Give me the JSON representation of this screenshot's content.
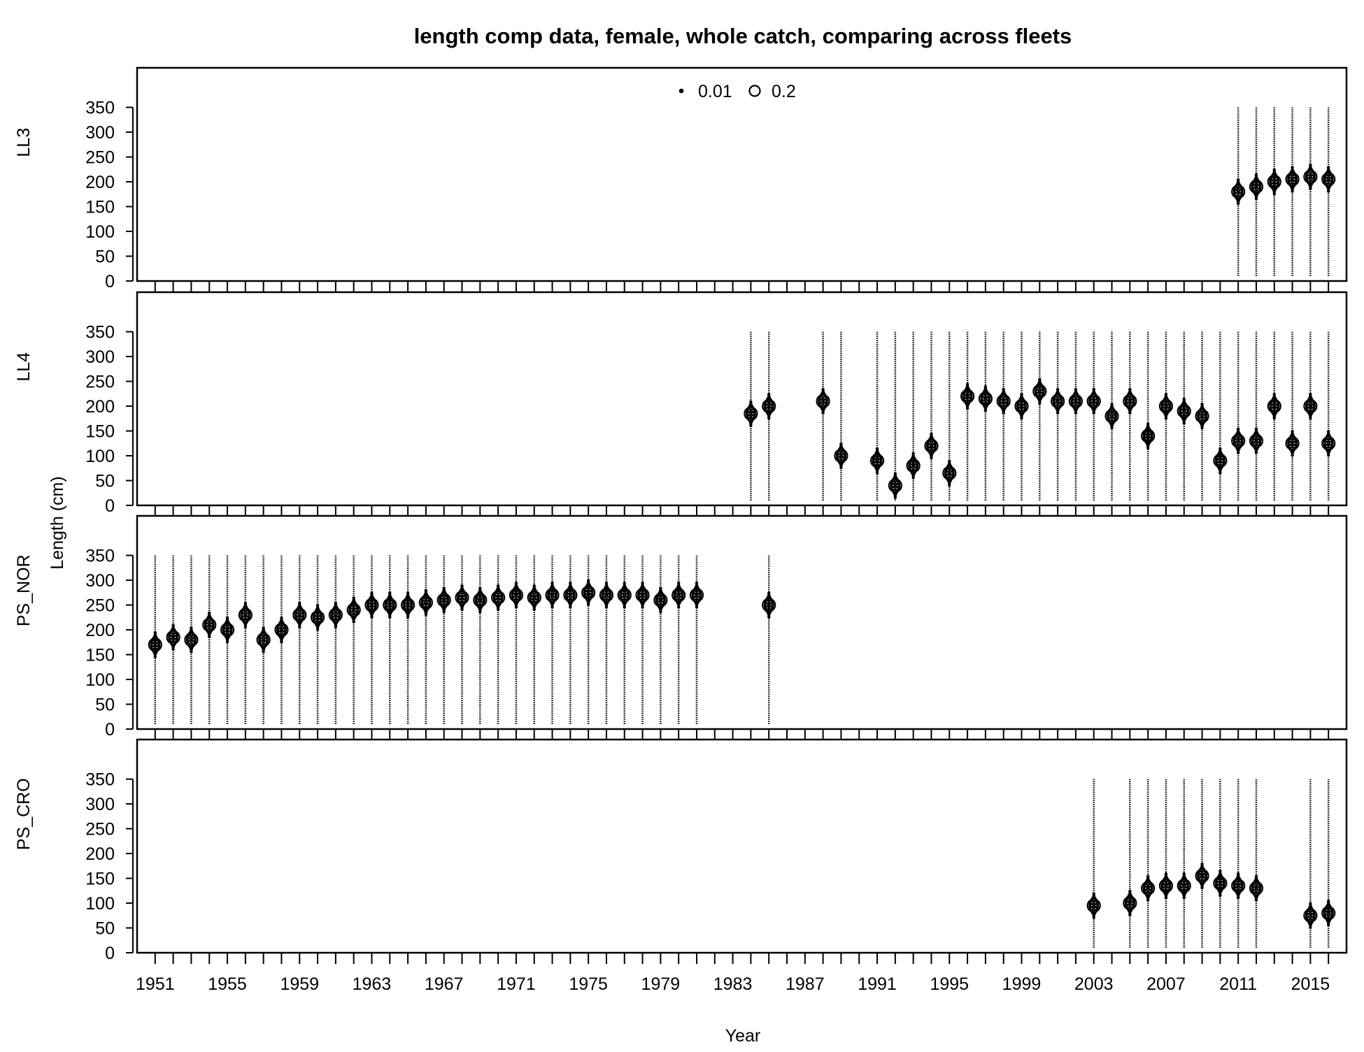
{
  "chart_data": {
    "type": "scatter",
    "title": "length comp data, female, whole catch, comparing across fleets",
    "xlabel": "Year",
    "ylabel": "Length (cm)",
    "xlim": [
      1950,
      2017
    ],
    "x_ticks": [
      1951,
      1955,
      1959,
      1963,
      1967,
      1971,
      1975,
      1979,
      1983,
      1987,
      1991,
      1995,
      1999,
      2003,
      2007,
      2011,
      2015
    ],
    "y_ticks": [
      0,
      50,
      100,
      150,
      200,
      250,
      300,
      350
    ],
    "ylim": [
      0,
      410
    ],
    "length_bin_range": [
      10,
      350
    ],
    "legend": {
      "placement": "top-center",
      "entries": [
        {
          "label": "0.01",
          "value": 0.01
        },
        {
          "label": "0.2",
          "value": 0.2
        }
      ]
    },
    "panels": [
      {
        "name": "LL3",
        "years": [
          2011,
          2012,
          2013,
          2014,
          2015,
          2016
        ],
        "modes": [
          [
            180
          ],
          [
            190
          ],
          [
            200
          ],
          [
            205
          ],
          [
            210
          ],
          [
            205
          ]
        ]
      },
      {
        "name": "LL4",
        "years": [
          1984,
          1985,
          1988,
          1989,
          1991,
          1992,
          1993,
          1994,
          1995,
          1996,
          1997,
          1998,
          1999,
          2000,
          2001,
          2002,
          2003,
          2004,
          2005,
          2006,
          2007,
          2008,
          2009,
          2010,
          2011,
          2012,
          2013,
          2014,
          2015,
          2016
        ],
        "modes": [
          [
            185
          ],
          [
            200
          ],
          [
            210
          ],
          [
            100
          ],
          [
            90
          ],
          [
            40
          ],
          [
            80
          ],
          [
            120
          ],
          [
            65
          ],
          [
            220
          ],
          [
            215
          ],
          [
            210
          ],
          [
            200
          ],
          [
            230
          ],
          [
            210
          ],
          [
            210
          ],
          [
            210
          ],
          [
            180
          ],
          [
            210
          ],
          [
            140
          ],
          [
            200
          ],
          [
            190
          ],
          [
            180
          ],
          [
            90
          ],
          [
            130
          ],
          [
            130
          ],
          [
            200
          ],
          [
            125
          ],
          [
            200
          ],
          [
            125
          ]
        ]
      },
      {
        "name": "PS_NOR",
        "years": [
          1951,
          1952,
          1953,
          1954,
          1955,
          1956,
          1957,
          1958,
          1959,
          1960,
          1961,
          1962,
          1963,
          1964,
          1965,
          1966,
          1967,
          1968,
          1969,
          1970,
          1971,
          1972,
          1973,
          1974,
          1975,
          1976,
          1977,
          1978,
          1979,
          1980,
          1981,
          1985
        ],
        "modes": [
          [
            170
          ],
          [
            185
          ],
          [
            180
          ],
          [
            210
          ],
          [
            200
          ],
          [
            230
          ],
          [
            180
          ],
          [
            200
          ],
          [
            230
          ],
          [
            225
          ],
          [
            230
          ],
          [
            240
          ],
          [
            250
          ],
          [
            250
          ],
          [
            250
          ],
          [
            255
          ],
          [
            260
          ],
          [
            265
          ],
          [
            260
          ],
          [
            265
          ],
          [
            270
          ],
          [
            265
          ],
          [
            270
          ],
          [
            270
          ],
          [
            275
          ],
          [
            270
          ],
          [
            270
          ],
          [
            270
          ],
          [
            260
          ],
          [
            270
          ],
          [
            270
          ],
          [
            250
          ]
        ]
      },
      {
        "name": "PS_CRO",
        "years": [
          2003,
          2005,
          2006,
          2007,
          2008,
          2009,
          2010,
          2011,
          2012,
          2015,
          2016
        ],
        "modes": [
          [
            95
          ],
          [
            100
          ],
          [
            130
          ],
          [
            135
          ],
          [
            135
          ],
          [
            155
          ],
          [
            140
          ],
          [
            135
          ],
          [
            130
          ],
          [
            75
          ],
          [
            80
          ]
        ]
      }
    ]
  }
}
